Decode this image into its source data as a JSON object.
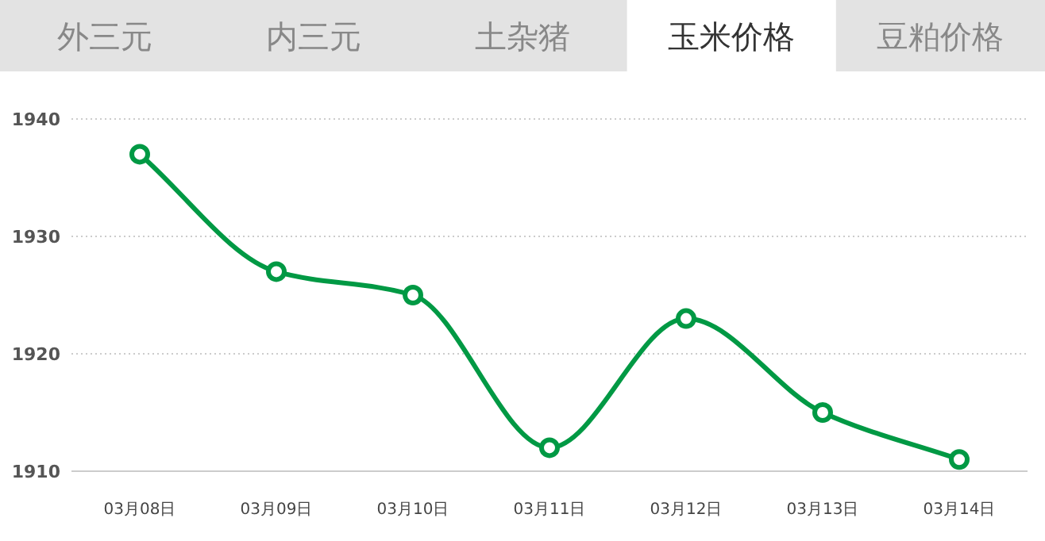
{
  "chart_data": {
    "type": "line",
    "title": "玉米价格",
    "annotations": [
      "外三元",
      "内三元",
      "土杂猪",
      "豆粕价格"
    ],
    "categories": [
      "03月08日",
      "03月09日",
      "03月10日",
      "03月11日",
      "03月12日",
      "03月13日",
      "03月14日"
    ],
    "values": [
      1937,
      1927,
      1925,
      1912,
      1923,
      1915,
      1911
    ],
    "color": "#009944",
    "marker": "circle",
    "line_style": "solid",
    "ylim": [
      1910,
      1940
    ],
    "yticks": [
      1910,
      1920,
      1930,
      1940
    ],
    "grid": "y"
  }
}
